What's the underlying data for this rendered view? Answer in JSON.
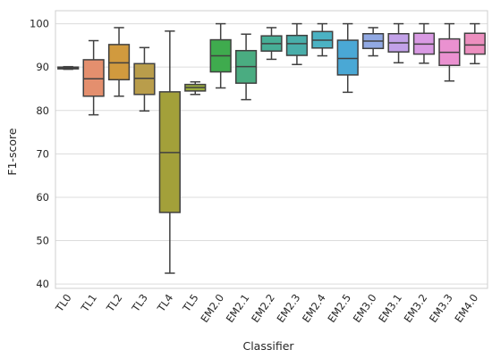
{
  "chart_data": {
    "type": "box",
    "xlabel": "Classifier",
    "ylabel": "F1-score",
    "ylim": [
      39,
      103
    ],
    "yticks": [
      40,
      50,
      60,
      70,
      80,
      90,
      100
    ],
    "grid": "horizontal",
    "categories": [
      "TL0",
      "TL1",
      "TL2",
      "TL3",
      "TL4",
      "TL5",
      "EM2.0",
      "EM2.1",
      "EM2.2",
      "EM2.3",
      "EM2.4",
      "EM2.5",
      "EM3.0",
      "EM3.1",
      "EM3.2",
      "EM3.3",
      "EM4.0"
    ],
    "colors": [
      "#e28386",
      "#e48f6e",
      "#d19a3e",
      "#b99d4b",
      "#a3a03a",
      "#9cad3f",
      "#3fab4e",
      "#4aac81",
      "#47ae96",
      "#49aeaa",
      "#4bb2c3",
      "#4aa8d5",
      "#91a9e3",
      "#c2a1e8",
      "#d99ae3",
      "#ea91d0",
      "#ec8fbf"
    ],
    "boxes": [
      {
        "whislo": 89.5,
        "q1": 89.6,
        "med": 89.8,
        "q3": 90.0,
        "whishi": 90.1
      },
      {
        "whislo": 79.0,
        "q1": 83.3,
        "med": 87.3,
        "q3": 91.7,
        "whishi": 96.1
      },
      {
        "whislo": 83.3,
        "q1": 87.1,
        "med": 91.0,
        "q3": 95.2,
        "whishi": 99.1
      },
      {
        "whislo": 79.9,
        "q1": 83.7,
        "med": 87.4,
        "q3": 90.8,
        "whishi": 94.5
      },
      {
        "whislo": 42.5,
        "q1": 56.5,
        "med": 70.3,
        "q3": 84.3,
        "whishi": 98.3
      },
      {
        "whislo": 83.7,
        "q1": 84.5,
        "med": 85.3,
        "q3": 86.0,
        "whishi": 86.6
      },
      {
        "whislo": 85.2,
        "q1": 88.9,
        "med": 92.6,
        "q3": 96.3,
        "whishi": 100.0
      },
      {
        "whislo": 82.5,
        "q1": 86.3,
        "med": 90.1,
        "q3": 93.8,
        "whishi": 97.6
      },
      {
        "whislo": 91.8,
        "q1": 93.7,
        "med": 95.4,
        "q3": 97.2,
        "whishi": 99.1
      },
      {
        "whislo": 90.6,
        "q1": 92.7,
        "med": 95.4,
        "q3": 97.3,
        "whishi": 100.0
      },
      {
        "whislo": 92.6,
        "q1": 94.4,
        "med": 96.2,
        "q3": 98.2,
        "whishi": 100.0
      },
      {
        "whislo": 84.2,
        "q1": 88.2,
        "med": 92.0,
        "q3": 96.2,
        "whishi": 100.0
      },
      {
        "whislo": 92.6,
        "q1": 94.3,
        "med": 96.0,
        "q3": 97.7,
        "whishi": 99.1
      },
      {
        "whislo": 91.0,
        "q1": 93.5,
        "med": 95.6,
        "q3": 97.7,
        "whishi": 100.0
      },
      {
        "whislo": 90.9,
        "q1": 93.0,
        "med": 95.3,
        "q3": 97.8,
        "whishi": 100.0
      },
      {
        "whislo": 86.8,
        "q1": 90.4,
        "med": 93.4,
        "q3": 96.5,
        "whishi": 100.0
      },
      {
        "whislo": 90.8,
        "q1": 93.0,
        "med": 95.1,
        "q3": 97.8,
        "whishi": 100.0
      }
    ]
  }
}
